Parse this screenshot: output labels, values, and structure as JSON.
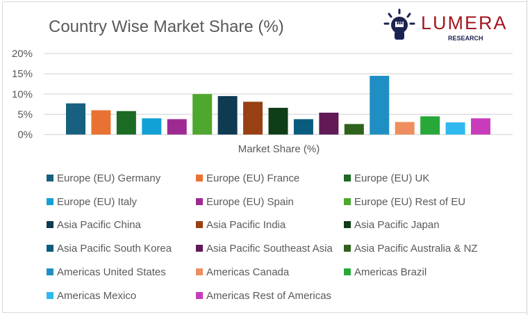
{
  "chart_data": {
    "type": "bar",
    "title": "Country Wise Market Share (%)",
    "xlabel": "Market Share (%)",
    "ylabel": "",
    "ylim": [
      0,
      20
    ],
    "yticks": [
      "0%",
      "5%",
      "10%",
      "15%",
      "20%"
    ],
    "grid": true,
    "legend_placement": "bottom",
    "series": [
      {
        "name": "Europe (EU) Germany",
        "value": 7.7,
        "color": "#17607f"
      },
      {
        "name": "Europe (EU) France",
        "value": 6.0,
        "color": "#e97233"
      },
      {
        "name": "Europe (EU) UK",
        "value": 5.8,
        "color": "#1b6b25"
      },
      {
        "name": "Europe (EU) Italy",
        "value": 4.0,
        "color": "#12a0d7"
      },
      {
        "name": "Europe (EU) Spain",
        "value": 3.8,
        "color": "#9e2a91"
      },
      {
        "name": "Europe (EU) Rest of EU",
        "value": 10.0,
        "color": "#4ea72f"
      },
      {
        "name": "Asia Pacific China",
        "value": 9.5,
        "color": "#0e3a52"
      },
      {
        "name": "Asia Pacific India",
        "value": 8.1,
        "color": "#984013"
      },
      {
        "name": "Asia Pacific Japan",
        "value": 6.6,
        "color": "#0f3d17"
      },
      {
        "name": "Asia Pacific South Korea",
        "value": 3.8,
        "color": "#0a5c7e"
      },
      {
        "name": "Asia Pacific Southeast Asia",
        "value": 5.4,
        "color": "#611a56"
      },
      {
        "name": "Asia Pacific Australia & NZ",
        "value": 2.6,
        "color": "#2f621c"
      },
      {
        "name": "Americas United States",
        "value": 14.5,
        "color": "#1f8fc3"
      },
      {
        "name": "Americas Canada",
        "value": 3.1,
        "color": "#ee8e5e"
      },
      {
        "name": "Americas Brazil",
        "value": 4.5,
        "color": "#29a83a"
      },
      {
        "name": "Americas Mexico",
        "value": 3.0,
        "color": "#2fb9ee"
      },
      {
        "name": "Americas Rest of Americas",
        "value": 4.0,
        "color": "#c83cbb"
      }
    ]
  },
  "logo": {
    "brand": "LUMERA",
    "sub": "RESEARCH"
  }
}
